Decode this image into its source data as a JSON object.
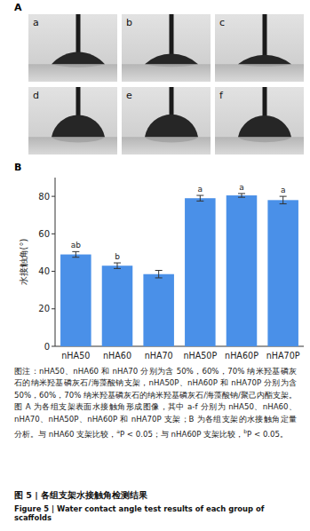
{
  "panel_a": {
    "label": "A",
    "labels": [
      "a",
      "b",
      "c",
      "d",
      "e",
      "f"
    ]
  },
  "panel_b_label": "B",
  "chart_data": {
    "type": "bar",
    "y_label": "水接触角(°)",
    "categories": [
      "nHA50",
      "nHA60",
      "nHA70",
      "nHA50P",
      "nHA60P",
      "nHA70P"
    ],
    "values": [
      49,
      43,
      38.5,
      79,
      80.5,
      78
    ],
    "errors": [
      1.5,
      1.5,
      2,
      1.5,
      1,
      2
    ],
    "significance": [
      "ab",
      "b",
      null,
      "a",
      "a",
      "a"
    ],
    "color": "#4a90e8",
    "ylim": [
      0,
      90
    ],
    "yticks": [
      0,
      20,
      40,
      60,
      80
    ],
    "grid": false
  },
  "caption": [
    {
      "text": "图注：nHA50、nHA60 和 nHA70 分别为含 50%，60%，70% 纳米羟基磷灰石的纳米羟基磷灰石/海藻酸钠支架，nHA50P、nHA60P 和 nHA70P 分别为含 50%，60%，70% 纳米羟基磷灰石的纳米羟基磷灰石/海藻酸钠/聚己内酯支架。图 A 为各组支架表面水接触角形成图像，其中 a-f 分别为 nHA50、nHA60、nHA70、nHA50P、nHA60P 和 nHA70P 支架；B 为各组支架的水接触角定量分析。与 nHA60 支架比较，"
    },
    {
      "sup": "a"
    },
    {
      "text": "P < 0.05；与 nHA60P 支架比较，"
    },
    {
      "sup": "b"
    },
    {
      "text": "P < 0.05。"
    }
  ],
  "figure_title": "图 5 | 各组支架水接触角检测结果",
  "figure_title_en": "Figure 5 | Water contact angle test results of each group of scaffolds"
}
